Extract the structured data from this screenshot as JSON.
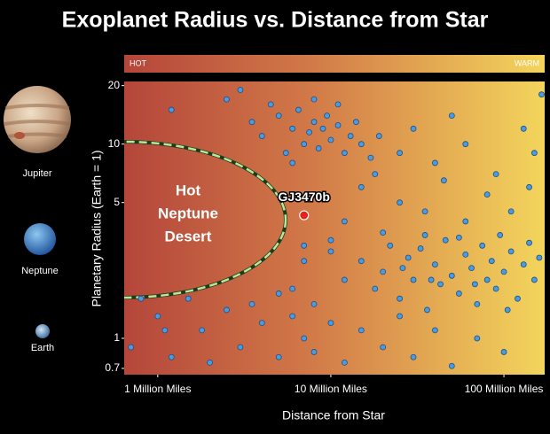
{
  "chart_data": {
    "type": "scatter",
    "title": "Exoplanet Radius vs. Distance from Star",
    "xlabel": "Distance from Star",
    "ylabel": "Planetary Radius (Earth = 1)",
    "xscale": "log",
    "yscale": "log",
    "xlim": [
      0.64,
      172
    ],
    "ylim": [
      0.65,
      21
    ],
    "xticks": [
      {
        "value": 1,
        "label": "1 Million Miles"
      },
      {
        "value": 10,
        "label": "10 Million Miles"
      },
      {
        "value": 100,
        "label": "100 Million Miles"
      }
    ],
    "yticks": [
      20,
      10,
      5,
      1,
      0.7
    ],
    "colorbar": {
      "labels": [
        "HOT",
        "WARM"
      ],
      "colors": [
        "#b4463a",
        "#f3d55c"
      ]
    },
    "planet_labels": [
      "Jupiter",
      "Neptune",
      "Earth"
    ],
    "annotation": [
      "Hot",
      "Neptune",
      "Desert"
    ],
    "highlight": {
      "label": "GJ3470b",
      "color": "#e8201a",
      "x": 7,
      "y": 4.3
    },
    "series": [
      {
        "color": "#4a9be0",
        "x": [
          3.5,
          4,
          5,
          5.5,
          6,
          6.5,
          7,
          7.5,
          8,
          8.5,
          9,
          9.5,
          10,
          11,
          12,
          13,
          14,
          15,
          17,
          19,
          4.5,
          8,
          11,
          6,
          25,
          30,
          40,
          60,
          90,
          130,
          150,
          165,
          50,
          9,
          12,
          15,
          20,
          25,
          35,
          45,
          60,
          80,
          110,
          140,
          18,
          7,
          10,
          15,
          18,
          20,
          22,
          25,
          28,
          30,
          33,
          36,
          40,
          43,
          46,
          50,
          55,
          60,
          65,
          70,
          75,
          80,
          85,
          90,
          100,
          110,
          120,
          130,
          140,
          150,
          160,
          35,
          55,
          95,
          26,
          38,
          68,
          105,
          6,
          7,
          8,
          10,
          12,
          5,
          0.8,
          1,
          1.2,
          1.5,
          1.8,
          2,
          2.5,
          3,
          3.5,
          4,
          5,
          6,
          7,
          8,
          10,
          12,
          15,
          20,
          25,
          30,
          40,
          50,
          70,
          100,
          0.7,
          1.1,
          1.2,
          2.5,
          3
        ],
        "y": [
          13,
          11,
          14,
          9,
          12,
          15,
          10,
          11.5,
          13,
          9.5,
          12,
          14,
          10.5,
          12.5,
          9,
          11,
          13,
          10,
          8.5,
          11,
          16,
          17,
          16,
          8,
          9,
          12,
          8,
          10,
          7,
          12,
          9,
          18,
          14,
          5.5,
          4,
          6,
          3.5,
          5,
          4.5,
          6.5,
          4,
          5.5,
          4.5,
          6,
          7,
          3,
          3.2,
          2.5,
          1.8,
          2.2,
          3,
          1.6,
          2.6,
          2,
          2.9,
          1.4,
          2.4,
          1.9,
          3.2,
          2.1,
          1.7,
          2.7,
          2.3,
          1.5,
          3,
          2,
          2.5,
          1.8,
          2.2,
          2.8,
          1.6,
          2.4,
          3.1,
          2,
          2.6,
          3.4,
          3.3,
          3.4,
          2.3,
          2,
          1.9,
          1.4,
          1.8,
          2.5,
          1.5,
          2.8,
          2,
          1.7,
          1.6,
          1.3,
          0.8,
          1.6,
          1.1,
          0.75,
          1.4,
          0.9,
          1.5,
          1.2,
          0.8,
          1.3,
          1,
          0.85,
          1.2,
          0.75,
          1.1,
          0.9,
          1.3,
          0.8,
          1.1,
          0.72,
          1,
          0.85,
          0.9,
          1.1,
          15,
          17,
          19
        ]
      }
    ]
  }
}
